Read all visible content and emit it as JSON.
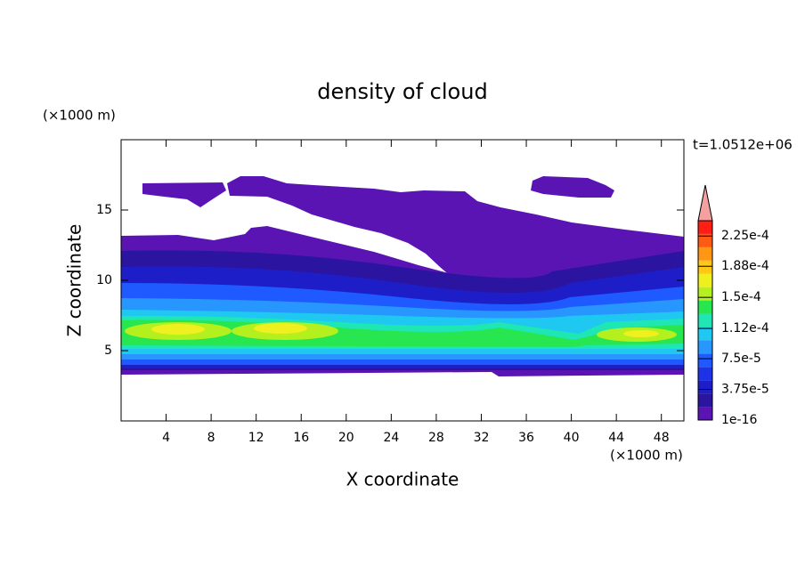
{
  "chart_data": {
    "type": "contour",
    "title": "density of cloud",
    "time_label": "t=1.0512e+06",
    "x_label": "X coordinate",
    "y_label": "Z coordinate",
    "x_unit": "(×1000 m)",
    "y_unit": "(×1000 m)",
    "xlim": [
      0,
      50
    ],
    "xticks": [
      4,
      8,
      12,
      16,
      20,
      24,
      28,
      32,
      36,
      40,
      44,
      48
    ],
    "ylim": [
      0,
      20
    ],
    "yticks": [
      5,
      10,
      15
    ],
    "colorbar": {
      "lim": [
        1e-16,
        0.00024375
      ],
      "colors": [
        "#5a14b4",
        "#2a14a0",
        "#1e1ec8",
        "#1e32e6",
        "#1e5aff",
        "#2896ff",
        "#1ec8f0",
        "#1ee6b4",
        "#28e650",
        "#b4f01e",
        "#f0f01e",
        "#ffc814",
        "#ff9614",
        "#ff5a14",
        "#ff1e14"
      ],
      "over_color": "#f4a0a0",
      "ticks": [
        {
          "value": 1e-16,
          "label": "1e-16"
        },
        {
          "value": 3.75e-05,
          "label": "3.75e-5"
        },
        {
          "value": 7.5e-05,
          "label": "7.5e-5"
        },
        {
          "value": 0.000112,
          "label": "1.12e-4"
        },
        {
          "value": 0.00015,
          "label": "1.5e-4"
        },
        {
          "value": 0.000188,
          "label": "1.88e-4"
        },
        {
          "value": 0.000225,
          "label": "2.25e-4"
        }
      ]
    }
  }
}
